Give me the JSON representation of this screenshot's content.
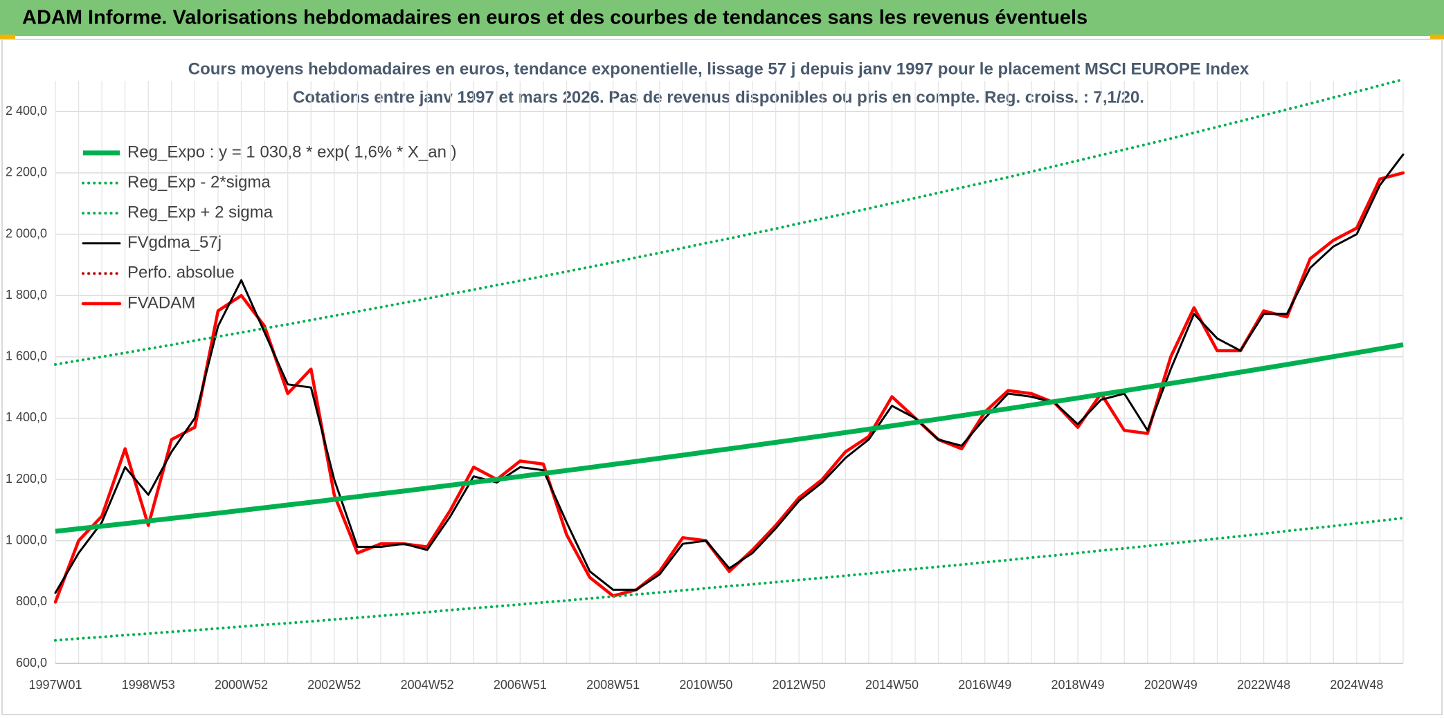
{
  "header": {
    "title": "ADAM Informe. Valorisations hebdomadaires en euros et des courbes de tendances sans les revenus éventuels"
  },
  "chart_data": {
    "type": "line",
    "title": "Cours moyens hebdomadaires en euros, tendance exponentielle, lissage 57 j depuis janv 1997 pour le placement MSCI EUROPE Index",
    "subtitle": "Cotations entre janv 1997 et mars 2026. Pas de revenus disponibles ou pris en compte. Reg. croiss. : 7,1/20.",
    "categories": [
      "1997W01",
      null,
      null,
      null,
      "1998W53",
      null,
      null,
      null,
      "2000W52",
      null,
      null,
      null,
      "2002W52",
      null,
      null,
      null,
      "2004W52",
      null,
      null,
      null,
      "2006W51",
      null,
      null,
      null,
      "2008W51",
      null,
      null,
      null,
      "2010W50",
      null,
      null,
      null,
      "2012W50",
      null,
      null,
      null,
      "2014W50",
      null,
      null,
      null,
      "2016W49",
      null,
      null,
      null,
      "2018W49",
      null,
      null,
      null,
      "2020W49",
      null,
      null,
      null,
      "2022W48",
      null,
      null,
      null,
      "2024W48",
      null,
      null
    ],
    "series": [
      {
        "name": "Reg_Expo : y = 1 030,8 * exp( 1,6% *  X_an )",
        "color": "#00b050",
        "style": "thick",
        "values": [
          1030.8,
          1039.1,
          1047.4,
          1055.8,
          1064.3,
          1072.9,
          1081.5,
          1090.2,
          1098.9,
          1107.8,
          1116.7,
          1125.6,
          1134.7,
          1143.8,
          1153.0,
          1162.2,
          1171.6,
          1181.0,
          1190.5,
          1200.0,
          1209.7,
          1219.4,
          1229.2,
          1239.0,
          1249.0,
          1259.0,
          1269.1,
          1279.3,
          1289.6,
          1300.0,
          1310.4,
          1320.9,
          1331.5,
          1342.2,
          1353.0,
          1363.9,
          1374.8,
          1385.9,
          1397.0,
          1408.2,
          1419.5,
          1430.9,
          1442.4,
          1454.0,
          1465.7,
          1477.5,
          1489.3,
          1501.3,
          1513.3,
          1525.5,
          1537.7,
          1550.1,
          1562.5,
          1575.1,
          1587.7,
          1600.5,
          1613.3,
          1626.3,
          1639.3
        ]
      },
      {
        "name": "Reg_Exp - 2*sigma",
        "color": "#00b050",
        "style": "dotted",
        "values": [
          675,
          681,
          686,
          692,
          697,
          703,
          708,
          714,
          720,
          726,
          731,
          737,
          743,
          749,
          755,
          761,
          767,
          774,
          780,
          786,
          792,
          799,
          805,
          812,
          818,
          825,
          831,
          838,
          845,
          852,
          858,
          865,
          872,
          879,
          886,
          893,
          901,
          908,
          915,
          922,
          930,
          937,
          945,
          952,
          960,
          968,
          975,
          983,
          991,
          999,
          1007,
          1015,
          1023,
          1032,
          1040,
          1048,
          1057,
          1065,
          1074
        ]
      },
      {
        "name": "Reg_Exp + 2 sigma",
        "color": "#00b050",
        "style": "dotted",
        "values": [
          1575,
          1588,
          1600,
          1613,
          1626,
          1639,
          1653,
          1666,
          1679,
          1693,
          1706,
          1720,
          1734,
          1748,
          1762,
          1776,
          1790,
          1805,
          1819,
          1834,
          1848,
          1863,
          1878,
          1893,
          1908,
          1924,
          1939,
          1955,
          1971,
          1986,
          2002,
          2018,
          2035,
          2051,
          2067,
          2084,
          2101,
          2118,
          2135,
          2152,
          2169,
          2186,
          2204,
          2222,
          2240,
          2258,
          2276,
          2294,
          2312,
          2331,
          2350,
          2369,
          2388,
          2407,
          2426,
          2446,
          2465,
          2485,
          2505
        ]
      },
      {
        "name": "FVgdma_57j",
        "color": "#000000",
        "style": "solid",
        "values": [
          830,
          960,
          1060,
          1240,
          1150,
          1290,
          1400,
          1700,
          1850,
          1680,
          1510,
          1500,
          1200,
          980,
          980,
          990,
          970,
          1080,
          1210,
          1190,
          1240,
          1230,
          1060,
          900,
          840,
          840,
          890,
          990,
          1000,
          910,
          960,
          1040,
          1130,
          1190,
          1270,
          1330,
          1440,
          1400,
          1330,
          1310,
          1400,
          1480,
          1470,
          1450,
          1380,
          1460,
          1480,
          1360,
          1560,
          1740,
          1660,
          1620,
          1740,
          1740,
          1890,
          1960,
          2000,
          2160,
          2260
        ]
      },
      {
        "name": "Perfo. absolue",
        "color": "#c00000",
        "style": "dotted",
        "values": [
          null,
          null,
          null,
          null,
          null,
          null,
          null,
          null,
          null,
          null,
          null,
          null,
          null,
          null,
          null,
          null,
          null,
          null,
          null,
          null,
          null,
          null,
          null,
          null,
          null,
          null,
          null,
          null,
          null,
          null,
          null,
          null,
          null,
          null,
          null,
          null,
          null,
          null,
          null,
          null,
          null,
          null,
          null,
          null,
          null,
          null,
          null,
          null,
          null,
          null,
          null,
          null,
          null,
          null,
          null,
          null,
          null,
          null,
          null
        ]
      },
      {
        "name": "FVADAM",
        "color": "#ff0000",
        "style": "bold",
        "values": [
          800,
          1000,
          1080,
          1300,
          1050,
          1330,
          1370,
          1750,
          1800,
          1700,
          1480,
          1560,
          1150,
          960,
          990,
          990,
          980,
          1100,
          1240,
          1200,
          1260,
          1250,
          1020,
          880,
          820,
          840,
          900,
          1010,
          1000,
          900,
          970,
          1050,
          1140,
          1200,
          1290,
          1340,
          1470,
          1400,
          1330,
          1300,
          1420,
          1490,
          1480,
          1450,
          1370,
          1480,
          1360,
          1350,
          1600,
          1760,
          1620,
          1620,
          1750,
          1730,
          1920,
          1980,
          2020,
          2180,
          2200
        ]
      }
    ],
    "ylim": [
      600,
      2500
    ],
    "yticks": [
      {
        "value": 600,
        "label": "600,0"
      },
      {
        "value": 800,
        "label": "800,0"
      },
      {
        "value": 1000,
        "label": "1 000,0"
      },
      {
        "value": 1200,
        "label": "1 200,0"
      },
      {
        "value": 1400,
        "label": "1 400,0"
      },
      {
        "value": 1600,
        "label": "1 600,0"
      },
      {
        "value": 1800,
        "label": "1 800,0"
      },
      {
        "value": 2000,
        "label": "2 000,0"
      },
      {
        "value": 2200,
        "label": "2 200,0"
      },
      {
        "value": 2400,
        "label": "2 400,0"
      }
    ],
    "grid": true,
    "legend": "top-left"
  }
}
